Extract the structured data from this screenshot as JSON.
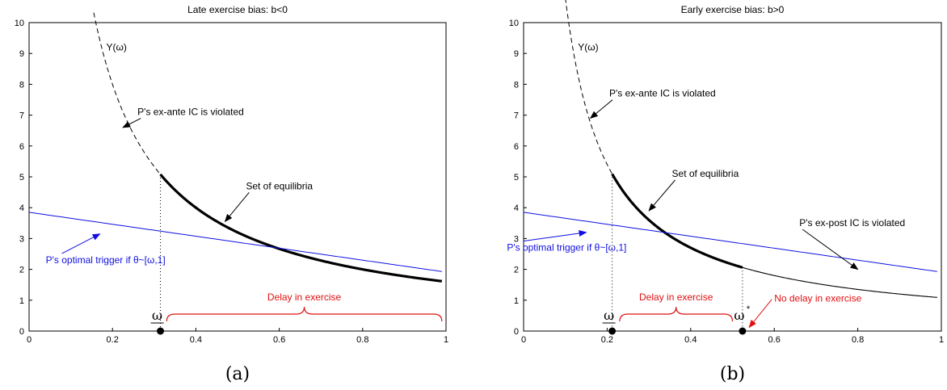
{
  "figure": {
    "colors": {
      "black": "#000000",
      "blue": "#1010e0",
      "red": "#e01010"
    }
  },
  "chart_data": [
    {
      "type": "line",
      "title": "Late exercise bias: b<0",
      "caption": "(a)",
      "xlim": [
        0,
        1
      ],
      "ylim": [
        0,
        10
      ],
      "xticks": [
        "0",
        "0.2",
        "0.4",
        "0.6",
        "0.8",
        "1"
      ],
      "yticks": [
        "0",
        "1",
        "2",
        "3",
        "4",
        "5",
        "6",
        "7",
        "8",
        "9",
        "10"
      ],
      "Y_constant": 1.6,
      "trigger_intercept": 3.85,
      "trigger_end": 1.93,
      "omega_low": 0.315,
      "curve_label": "Y(ω)",
      "omega_label": "ω",
      "series": [
        {
          "name": "dashed",
          "role": "Y",
          "style": "dashed",
          "x_range": [
            0.155,
            0.315
          ]
        },
        {
          "name": "thick",
          "role": "Y",
          "style": "thick",
          "x_range": [
            0.315,
            0.99
          ]
        },
        {
          "name": "blue",
          "role": "trigger",
          "style": "blue",
          "x_range": [
            0,
            0.99
          ]
        }
      ],
      "annotations": [
        {
          "text": "P's ex-ante IC is violated",
          "color": "black",
          "text_x": 0.26,
          "text_y": 7.0,
          "arrow_to": [
            0.225,
            6.6
          ]
        },
        {
          "text": "Set of equilibria",
          "color": "black",
          "text_x": 0.52,
          "text_y": 4.6,
          "arrow_to": [
            0.47,
            3.55
          ]
        },
        {
          "text": "P's optimal trigger if  θ~[ω,1]",
          "color": "blue",
          "text_x": 0.04,
          "text_y": 2.2,
          "arrow_to": [
            0.17,
            3.15
          ]
        }
      ],
      "braces": [
        {
          "text": "Delay in exercise",
          "x_range": [
            0.33,
            0.99
          ]
        }
      ],
      "points": [
        {
          "x": 0.315,
          "y": 0
        }
      ]
    },
    {
      "type": "line",
      "title": "Early exercise bias: b>0",
      "caption": "(b)",
      "xlim": [
        0,
        1
      ],
      "ylim": [
        0,
        10
      ],
      "xticks": [
        "0",
        "0.2",
        "0.4",
        "0.6",
        "0.8",
        "1"
      ],
      "yticks": [
        "0",
        "1",
        "2",
        "3",
        "4",
        "5",
        "6",
        "7",
        "8",
        "9",
        "10"
      ],
      "Y_constant": 1.08,
      "trigger_intercept": 3.85,
      "trigger_end": 1.93,
      "omega_low": 0.212,
      "omega_star": 0.524,
      "curve_label": "Y(ω)",
      "omega_label": "ω",
      "omega_star_label": "ω",
      "omega_star_sup": "*",
      "series": [
        {
          "name": "dashed",
          "role": "Y",
          "style": "dashed",
          "x_range": [
            0.1,
            0.212
          ]
        },
        {
          "name": "thick",
          "role": "Y",
          "style": "thick",
          "x_range": [
            0.212,
            0.524
          ]
        },
        {
          "name": "thin",
          "role": "Y",
          "style": "thin",
          "x_range": [
            0.524,
            0.99
          ]
        },
        {
          "name": "blue",
          "role": "trigger",
          "style": "blue",
          "x_range": [
            0,
            0.99
          ]
        }
      ],
      "annotations": [
        {
          "text": "P's ex-ante IC is violated",
          "color": "black",
          "text_x": 0.205,
          "text_y": 7.6,
          "arrow_to": [
            0.16,
            6.9
          ]
        },
        {
          "text": "Set of equilibria",
          "color": "black",
          "text_x": 0.355,
          "text_y": 5.0,
          "arrow_to": [
            0.3,
            3.9
          ]
        },
        {
          "text": "P's ex-post IC is violated",
          "color": "black",
          "text_x": 0.66,
          "text_y": 3.4,
          "arrow_to": [
            0.8,
            2.0
          ]
        },
        {
          "text": "P's optimal trigger if  θ~[ω,1]",
          "color": "blue",
          "text_x": -0.04,
          "text_y": 2.6,
          "arrow_to": [
            0.15,
            3.2
          ]
        },
        {
          "text": "No delay in exercise",
          "color": "red",
          "text_x": 0.6,
          "text_y": 0.95,
          "arrow_to": [
            0.54,
            0.12
          ]
        }
      ],
      "braces": [
        {
          "text": "Delay in exercise",
          "x_range": [
            0.23,
            0.5
          ]
        }
      ],
      "points": [
        {
          "x": 0.212,
          "y": 0
        },
        {
          "x": 0.524,
          "y": 0
        }
      ]
    }
  ]
}
